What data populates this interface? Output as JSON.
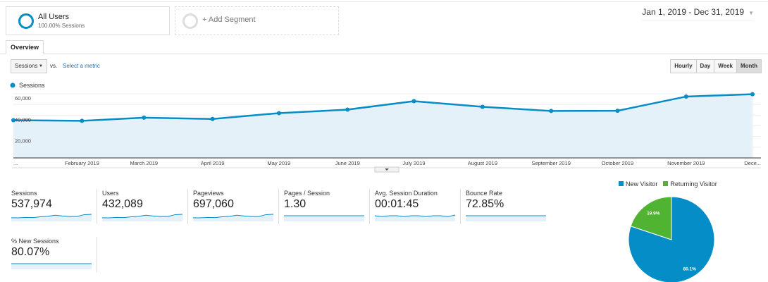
{
  "segments": [
    {
      "title": "All Users",
      "subtitle": "100.00% Sessions"
    },
    {
      "title": "+ Add Segment"
    }
  ],
  "date_range": "Jan 1, 2019 - Dec 31, 2019",
  "tabs": [
    {
      "label": "Overview",
      "active": true
    }
  ],
  "metric_selector": {
    "value": "Sessions",
    "vs": "vs.",
    "select_metric": "Select a metric"
  },
  "granularity": {
    "options": [
      "Hourly",
      "Day",
      "Week",
      "Month"
    ],
    "selected": "Month"
  },
  "colors": {
    "accent": "#058dc7",
    "area": "#e5f1f9",
    "returning": "#50b432",
    "link": "#1a6fb7"
  },
  "chart_data": [
    {
      "type": "area",
      "legend": "Sessions",
      "x": [
        "2019-01-01",
        "2019-02-01",
        "2019-03-01",
        "2019-04-01",
        "2019-05-01",
        "2019-06-01",
        "2019-07-01",
        "2019-08-01",
        "2019-09-01",
        "2019-10-01",
        "2019-11-01",
        "2019-12-01"
      ],
      "xtick_labels": [
        "...",
        "February 2019",
        "March 2019",
        "April 2019",
        "May 2019",
        "June 2019",
        "July 2019",
        "August 2019",
        "September 2019",
        "October 2019",
        "November 2019",
        "Dece..."
      ],
      "series": [
        {
          "name": "Sessions",
          "values": [
            35300,
            34700,
            37700,
            36400,
            41900,
            45200,
            53100,
            47800,
            43900,
            44100,
            57400,
            59600
          ]
        }
      ],
      "yticks": [
        "20,000",
        "40,000",
        "60,000"
      ],
      "ylim": [
        0,
        60000
      ],
      "grid": true
    },
    {
      "type": "pie",
      "legend_placement": "top",
      "slices": [
        {
          "name": "New Visitor",
          "value": 80.1,
          "label": "80.1%",
          "color": "#058dc7"
        },
        {
          "name": "Returning Visitor",
          "value": 19.9,
          "label": "19.9%",
          "color": "#50b432"
        }
      ]
    }
  ],
  "kpis": [
    {
      "label": "Sessions",
      "value": "537,974",
      "spark": "trend"
    },
    {
      "label": "Users",
      "value": "432,089",
      "spark": "trend"
    },
    {
      "label": "Pageviews",
      "value": "697,060",
      "spark": "trend"
    },
    {
      "label": "Pages / Session",
      "value": "1.30",
      "spark": "flat"
    },
    {
      "label": "Avg. Session Duration",
      "value": "00:01:45",
      "spark": "wavy"
    },
    {
      "label": "Bounce Rate",
      "value": "72.85%",
      "spark": "flat"
    },
    {
      "label": "% New Sessions",
      "value": "80.07%",
      "spark": "flat"
    }
  ]
}
